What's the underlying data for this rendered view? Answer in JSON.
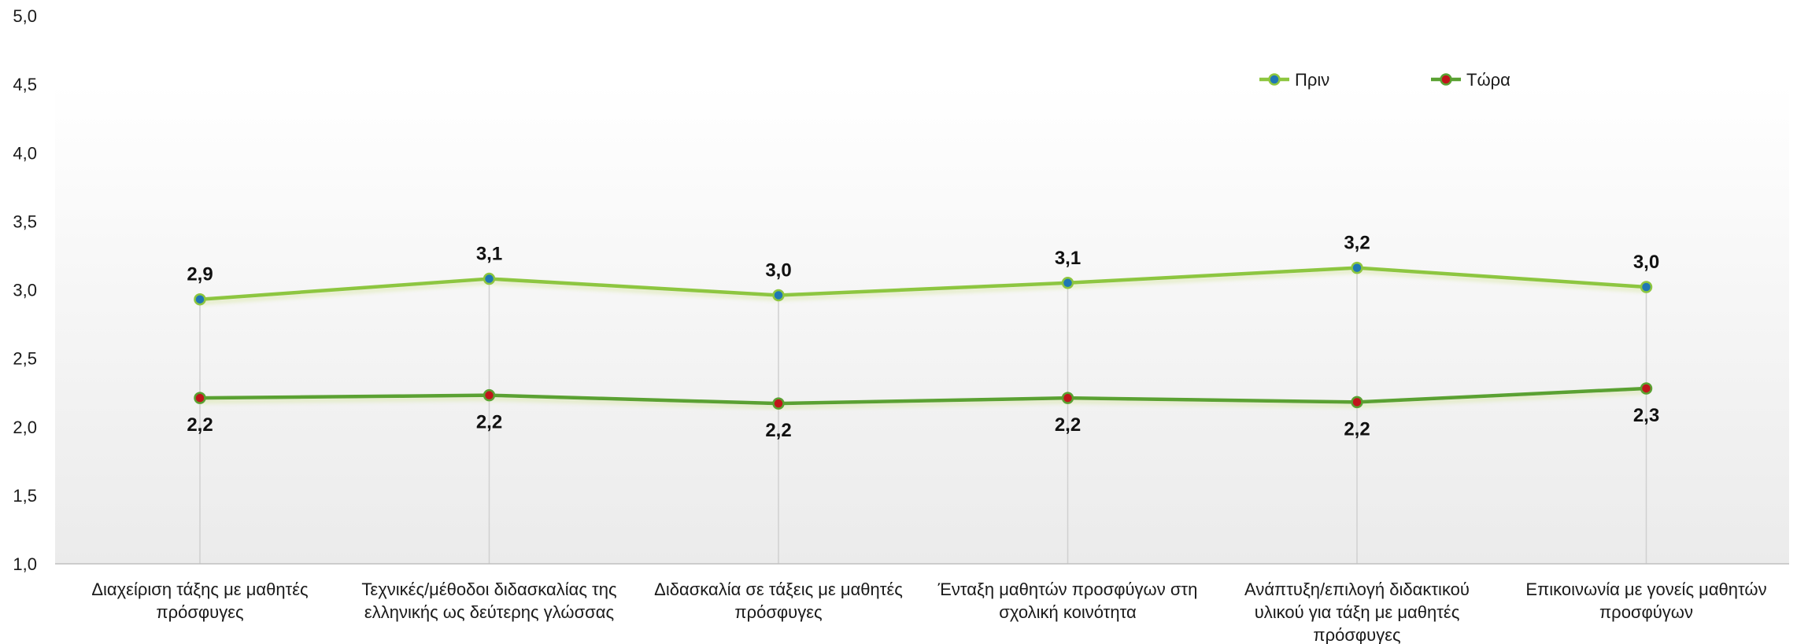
{
  "chart_data": {
    "type": "line",
    "title": "",
    "xlabel": "",
    "ylabel": "",
    "ylim": [
      1.0,
      5.0
    ],
    "yticks": [
      "1,0",
      "1,5",
      "2,0",
      "2,5",
      "3,0",
      "3,5",
      "4,0",
      "4,5",
      "5,0"
    ],
    "grid": false,
    "legend_position": "top-right",
    "categories": [
      [
        "Διαχείριση τάξης με μαθητές",
        "πρόσφυγες"
      ],
      [
        "Τεχνικές/μέθοδοι διδασκαλίας της",
        "ελληνικής ως δεύτερης γλώσσας"
      ],
      [
        "Διδασκαλία σε τάξεις με μαθητές",
        "πρόσφυγες"
      ],
      [
        "Ένταξη μαθητών προσφύγων στη",
        "σχολική κοινότητα"
      ],
      [
        "Ανάπτυξη/επιλογή διδακτικού",
        "υλικού για τάξη με μαθητές",
        "πρόσφυγες"
      ],
      [
        "Επικοινωνία με γονείς μαθητών",
        "προσφύγων"
      ]
    ],
    "series": [
      {
        "name": "Πριν",
        "values": [
          2.93,
          3.08,
          2.96,
          3.05,
          3.16,
          3.02
        ],
        "labels": [
          "2,9",
          "3,1",
          "3,0",
          "3,1",
          "3,2",
          "3,0"
        ],
        "line_color": "#8dc63f",
        "marker_fill": "#1f77b4",
        "label_position": "above"
      },
      {
        "name": "Τώρα",
        "values": [
          2.21,
          2.23,
          2.17,
          2.21,
          2.18,
          2.28
        ],
        "labels": [
          "2,2",
          "2,2",
          "2,2",
          "2,2",
          "2,2",
          "2,3"
        ],
        "line_color": "#5aa132",
        "marker_fill": "#c0151b",
        "label_position": "below"
      }
    ]
  }
}
